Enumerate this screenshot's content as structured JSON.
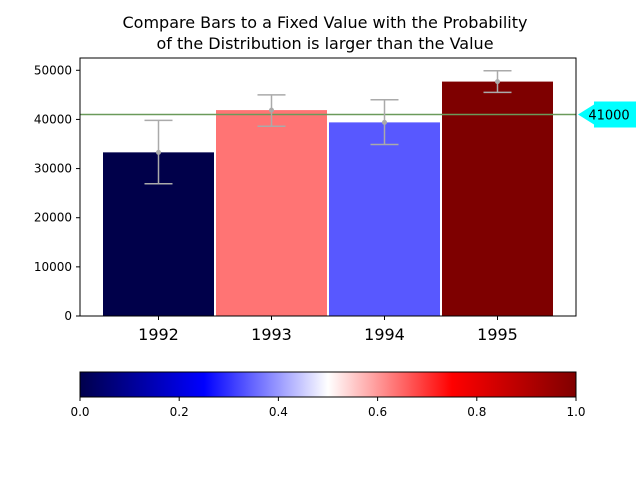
{
  "chart_data": {
    "type": "bar",
    "title_line1": "Compare Bars to a Fixed Value with the Probability",
    "title_line2": "of the Distribution is larger than the Value",
    "categories": [
      "1992",
      "1993",
      "1994",
      "1995"
    ],
    "values": [
      33300,
      41900,
      39400,
      47700
    ],
    "error_low": [
      26900,
      38600,
      34900,
      45500
    ],
    "error_high": [
      39800,
      45000,
      44000,
      49900
    ],
    "bar_colors": [
      "#00004a",
      "#ff7474",
      "#5858ff",
      "#7e0000"
    ],
    "error_color": "#aaaaaa",
    "ylim": [
      0,
      52500
    ],
    "y_ticks": [
      0,
      10000,
      20000,
      30000,
      40000,
      50000
    ],
    "y_tick_labels": [
      "0",
      "10000",
      "20000",
      "30000",
      "40000",
      "50000"
    ],
    "reference_value": 41000,
    "reference_label": "41000",
    "reference_line_color": "#6a9a5a",
    "marker_color": "#00ffff",
    "colorbar": {
      "range": [
        0,
        1
      ],
      "ticks": [
        "0.0",
        "0.2",
        "0.4",
        "0.6",
        "0.8",
        "1.0"
      ],
      "colormap": [
        "#00004c",
        "#0000ff",
        "#ffffff",
        "#ff0000",
        "#800000"
      ]
    },
    "xlabel": "",
    "ylabel": "",
    "grid": false,
    "legend": false
  }
}
